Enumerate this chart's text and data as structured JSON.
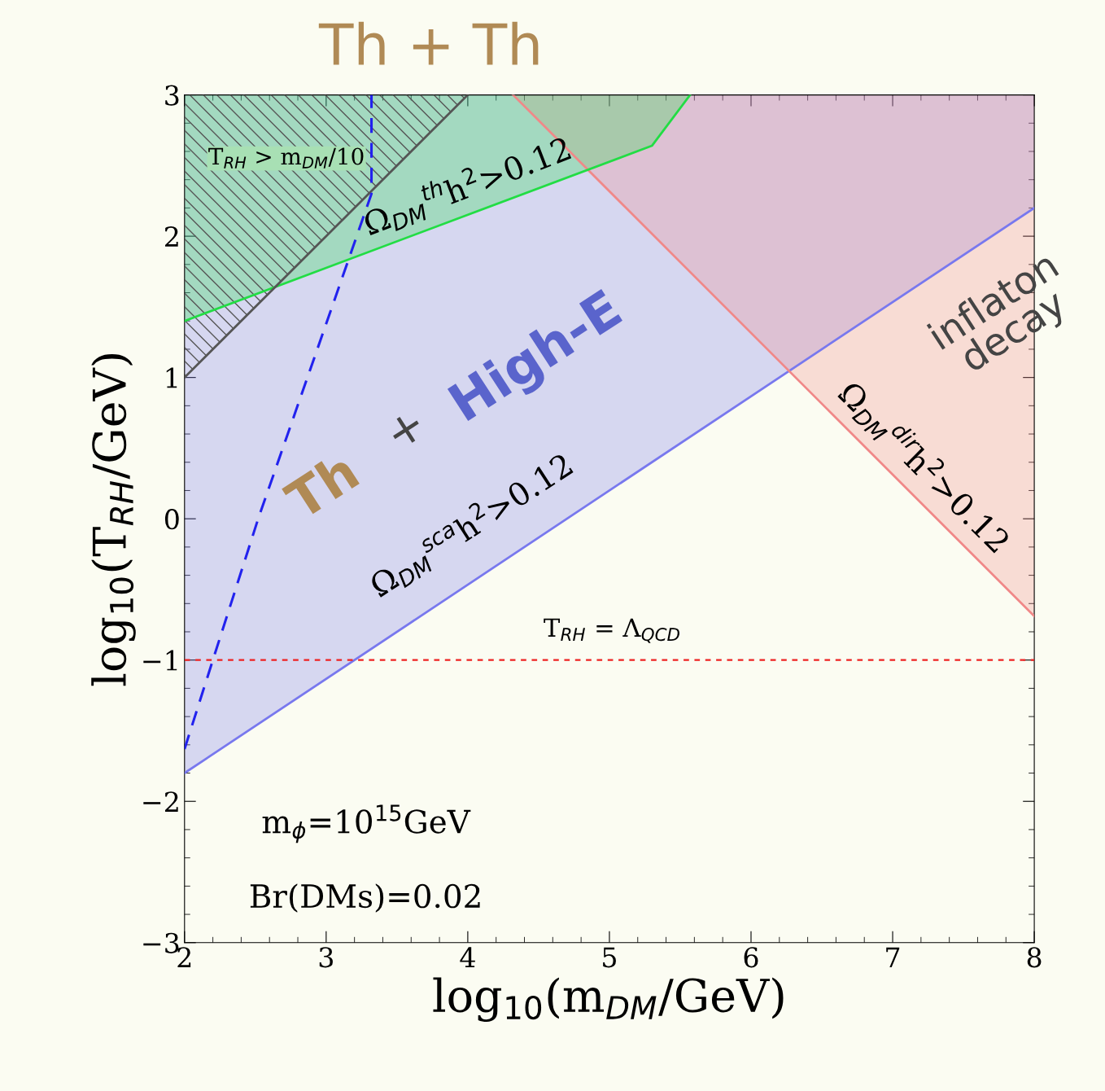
{
  "chart_data": {
    "type": "line",
    "title": "Th + Th",
    "xlabel": "log$_{10}$(m$_{DM}$/GeV)",
    "ylabel": "log$_{10}$(T$_{RH}$/GeV)",
    "xlim": [
      2,
      8
    ],
    "ylim": [
      -3,
      3
    ],
    "xticks": [
      2,
      3,
      4,
      5,
      6,
      7,
      8
    ],
    "yticks": [
      -3,
      -2,
      -1,
      0,
      1,
      2,
      3
    ],
    "grid": false,
    "legend": false,
    "series": [
      {
        "color": "#7878ee",
        "x": [
          2,
          8
        ],
        "values": [
          -1.8,
          2.2
        ],
        "lower": [
          -1.8,
          2.2
        ],
        "upper": [
          3,
          3
        ]
      },
      {
        "color": "#f08888",
        "x": [
          4.32,
          8
        ],
        "values": [
          3,
          -0.69
        ],
        "lower": [
          3,
          -0.69
        ],
        "upper": [
          3,
          3
        ]
      },
      {
        "color": "#22dd44",
        "x": [
          2,
          5.3,
          5.57
        ],
        "values": [
          1.4,
          2.64,
          3
        ],
        "lower": [
          1.4,
          2.64,
          3
        ],
        "upper": [
          3,
          3,
          3
        ]
      },
      {
        "color": "#555555",
        "x": [
          2,
          4
        ],
        "values": [
          1,
          3
        ],
        "lower": [
          1,
          3
        ],
        "upper": [
          3,
          3
        ]
      },
      {
        "line_style": "dashed",
        "color": "#2222ee",
        "x": [
          2,
          2.2,
          2.52,
          3.32,
          3.32
        ],
        "values": [
          -1.63,
          -1,
          0,
          2.3,
          3
        ]
      }
    ],
    "ref_lines": [
      {
        "axis": "y",
        "value": -1,
        "label": "T$_{RH}$ = Λ$_{QCD}$",
        "color": "#ee2222",
        "line_style": "dotted"
      }
    ],
    "annotations": [
      "T$_{RH}$ > m$_{DM}$/10",
      "Ω$_{DM}$$^{th}$h$^{2}$>0.12",
      "Ω$_{DM}$$^{sca}$h$^{2}$>0.12",
      "Ω$_{DM}$$^{dir}$h$^{2}$>0.12",
      "inflaton\ndecay",
      "Th",
      "+",
      "High-E",
      "m$_{ϕ}$=10$^{15}$GeV",
      "Br(DMs)=0.02"
    ]
  }
}
